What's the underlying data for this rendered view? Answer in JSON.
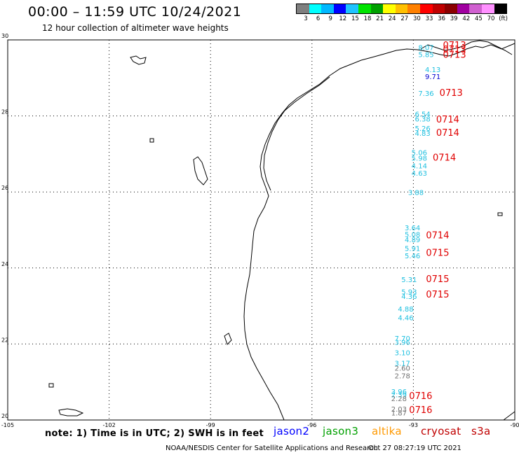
{
  "header": {
    "title": "00:00 – 11:59 UTC 10/24/2021",
    "subtitle": "12 hour collection of altimeter wave heights"
  },
  "legend": {
    "colors": [
      "#7f7f7f",
      "#00ffff",
      "#00b8ff",
      "#0000ff",
      "#1fc3ff",
      "#00e400",
      "#00a000",
      "#ffff00",
      "#ffc000",
      "#ff8000",
      "#ff0000",
      "#c00000",
      "#8b0000",
      "#a000a0",
      "#d060d0",
      "#ff90ff",
      "#000000"
    ],
    "labels": [
      "3",
      "6",
      "9",
      "12",
      "15",
      "18",
      "21",
      "24",
      "27",
      "30",
      "33",
      "36",
      "39",
      "42",
      "45",
      "70",
      "(ft)"
    ]
  },
  "axes": {
    "lon_ticks": [
      "-105",
      "-102",
      "-99",
      "-96",
      "-93",
      "-90"
    ],
    "lat_ticks": [
      "30",
      "28",
      "26",
      "24",
      "22",
      "20"
    ]
  },
  "wave_labels": [
    {
      "t": "8.07",
      "c": "#20c0e0",
      "lon": -92.4,
      "lat": 29.73
    },
    {
      "t": "5.85",
      "c": "#20c0e0",
      "lon": -92.4,
      "lat": 29.55
    },
    {
      "t": "4.13",
      "c": "#20c0e0",
      "lon": -92.2,
      "lat": 29.15
    },
    {
      "t": "9.71",
      "c": "#0000d0",
      "lon": -92.2,
      "lat": 28.97
    },
    {
      "t": "7.36",
      "c": "#20c0e0",
      "lon": -92.4,
      "lat": 28.53
    },
    {
      "t": "6.54",
      "c": "#20c0e0",
      "lon": -92.5,
      "lat": 27.98
    },
    {
      "t": "6.38",
      "c": "#20c0e0",
      "lon": -92.5,
      "lat": 27.85
    },
    {
      "t": "5.26",
      "c": "#20c0e0",
      "lon": -92.5,
      "lat": 27.61
    },
    {
      "t": "4.83",
      "c": "#20c0e0",
      "lon": -92.5,
      "lat": 27.48
    },
    {
      "t": "5.06",
      "c": "#20c0e0",
      "lon": -92.6,
      "lat": 26.97
    },
    {
      "t": "5.98",
      "c": "#20c0e0",
      "lon": -92.6,
      "lat": 26.82
    },
    {
      "t": "4.14",
      "c": "#20c0e0",
      "lon": -92.6,
      "lat": 26.62
    },
    {
      "t": "4.63",
      "c": "#20c0e0",
      "lon": -92.6,
      "lat": 26.43
    },
    {
      "t": "3.88",
      "c": "#20c0e0",
      "lon": -92.7,
      "lat": 25.92
    },
    {
      "t": "3.64",
      "c": "#20c0e0",
      "lon": -92.8,
      "lat": 24.99
    },
    {
      "t": "5.08",
      "c": "#20c0e0",
      "lon": -92.8,
      "lat": 24.82
    },
    {
      "t": "4.89",
      "c": "#20c0e0",
      "lon": -92.8,
      "lat": 24.68
    },
    {
      "t": "5.91",
      "c": "#20c0e0",
      "lon": -92.8,
      "lat": 24.45
    },
    {
      "t": "5.46",
      "c": "#20c0e0",
      "lon": -92.8,
      "lat": 24.25
    },
    {
      "t": "5.31",
      "c": "#20c0e0",
      "lon": -92.9,
      "lat": 23.63
    },
    {
      "t": "5.93",
      "c": "#20c0e0",
      "lon": -92.9,
      "lat": 23.31
    },
    {
      "t": "4.36",
      "c": "#20c0e0",
      "lon": -92.9,
      "lat": 23.19
    },
    {
      "t": "4.88",
      "c": "#20c0e0",
      "lon": -93.0,
      "lat": 22.85
    },
    {
      "t": "4.46",
      "c": "#20c0e0",
      "lon": -93.0,
      "lat": 22.62
    },
    {
      "t": "7.70",
      "c": "#20c0e0",
      "lon": -93.1,
      "lat": 22.08
    },
    {
      "t": "3.96",
      "c": "#20c0e0",
      "lon": -93.1,
      "lat": 21.98
    },
    {
      "t": "3.10",
      "c": "#20c0e0",
      "lon": -93.1,
      "lat": 21.7
    },
    {
      "t": "3.17",
      "c": "#20c0e0",
      "lon": -93.1,
      "lat": 21.43
    },
    {
      "t": "2.60",
      "c": "#707070",
      "lon": -93.1,
      "lat": 21.3
    },
    {
      "t": "2.78",
      "c": "#707070",
      "lon": -93.1,
      "lat": 21.1
    },
    {
      "t": "3.96",
      "c": "#20c0e0",
      "lon": -93.2,
      "lat": 20.68
    },
    {
      "t": "2.39",
      "c": "#20c0e0",
      "lon": -93.2,
      "lat": 20.6
    },
    {
      "t": "2.28",
      "c": "#707070",
      "lon": -93.2,
      "lat": 20.5
    },
    {
      "t": "2.03",
      "c": "#707070",
      "lon": -93.2,
      "lat": 20.22
    },
    {
      "t": "1.87",
      "c": "#707070",
      "lon": -93.2,
      "lat": 20.12
    }
  ],
  "time_labels": [
    {
      "t": "0713",
      "lon": -92.5,
      "lat": 29.78
    },
    {
      "t": "0713",
      "lon": -92.5,
      "lat": 29.67
    },
    {
      "t": "0713",
      "lon": -92.5,
      "lat": 29.53
    },
    {
      "t": "0713",
      "lon": -92.6,
      "lat": 28.53
    },
    {
      "t": "0714",
      "lon": -92.7,
      "lat": 27.83
    },
    {
      "t": "0714",
      "lon": -92.7,
      "lat": 27.48
    },
    {
      "t": "0714",
      "lon": -92.8,
      "lat": 26.82
    },
    {
      "t": "0714",
      "lon": -93.0,
      "lat": 24.78
    },
    {
      "t": "0715",
      "lon": -93.0,
      "lat": 24.32
    },
    {
      "t": "0715",
      "lon": -93.0,
      "lat": 23.63
    },
    {
      "t": "0715",
      "lon": -93.0,
      "lat": 23.22
    },
    {
      "t": "0716",
      "lon": -93.5,
      "lat": 20.55
    },
    {
      "t": "0716",
      "lon": -93.5,
      "lat": 20.18
    }
  ],
  "footer": {
    "note": "note: 1) Time is in UTC; 2) SWH is in feet",
    "satellites": [
      {
        "name": "jason2",
        "color": "#0000ff"
      },
      {
        "name": "jason3",
        "color": "#00a000"
      },
      {
        "name": "altika",
        "color": "#ff9900"
      },
      {
        "name": "cryosat",
        "color": "#c00000"
      },
      {
        "name": "s3a",
        "color": "#c00000"
      }
    ],
    "credit": "NOAA/NESDIS Center for Satellite Applications and Research",
    "timestamp": "Oct 27 08:27:19 UTC 2021"
  }
}
